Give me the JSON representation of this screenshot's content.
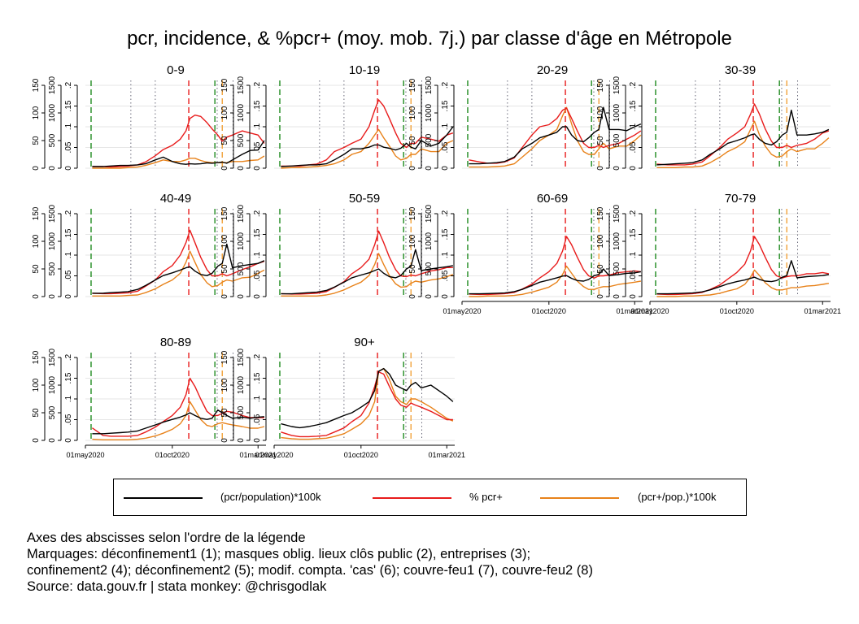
{
  "title": "pcr, incidence, & %pcr+ (moy. mob. 7j.) par classe d'âge en Métropole",
  "colors": {
    "pcr": "#000000",
    "pos": "#e81b1b",
    "inc": "#e8821a",
    "green": "#1e8a1e",
    "red": "#e81b1b",
    "orange": "#f2a23a",
    "dotted": "#6a6a7a",
    "grid": "#e6e6e6"
  },
  "legend": [
    {
      "label": "(pcr/population)*100k",
      "color": "#000000"
    },
    {
      "label": "% pcr+",
      "color": "#e81b1b"
    },
    {
      "label": "(pcr+/pop.)*100k",
      "color": "#e8821a"
    }
  ],
  "notes": [
    "Axes des abscisses selon l'ordre de la légende",
    "Marquages: déconfinement1 (1); masques oblig. lieux clôs public (2), entreprises (3);",
    "confinement2 (4); déconfinement2 (5); modif. compta. 'cas' (6); couvre-feu1 (7), couvre-feu2 (8)",
    "Source: data.gouv.fr | stata monkey: @chrisgodlak"
  ],
  "chart_data": {
    "type": "line",
    "x_tick_labels": [
      "01may2020",
      "01oct2020",
      "01mar2021"
    ],
    "xlim": [
      "2020-05-01",
      "2021-03-15"
    ],
    "axes": [
      {
        "name": "% pcr+",
        "ticks": [
          "0",
          ".05",
          ".1",
          ".15",
          ".2"
        ],
        "ylim": [
          0,
          0.2
        ]
      },
      {
        "name": "(pcr/population)*100k",
        "ticks": [
          "0",
          "500",
          "1000",
          "1500"
        ],
        "ylim": [
          0,
          1500
        ]
      },
      {
        "name": "(pcr+/pop.)*100k",
        "ticks": [
          "0",
          "50",
          "100",
          "150"
        ],
        "ylim": [
          0,
          150
        ]
      }
    ],
    "markers": [
      {
        "id": 1,
        "label": "déconfinement1",
        "date": "2020-05-11",
        "style": "green-dashed"
      },
      {
        "id": 2,
        "label": "masques oblig. lieux clôs public",
        "date": "2020-07-20",
        "style": "dotted"
      },
      {
        "id": 3,
        "label": "entreprises",
        "date": "2020-09-01",
        "style": "dotted"
      },
      {
        "id": 4,
        "label": "confinement2",
        "date": "2020-10-30",
        "style": "red-dashed"
      },
      {
        "id": 5,
        "label": "déconfinement2",
        "date": "2020-12-15",
        "style": "green-dashed"
      },
      {
        "id": 6,
        "label": "modif. compta. 'cas'",
        "date": "2020-12-19",
        "style": "dotted"
      },
      {
        "id": 7,
        "label": "couvre-feu1",
        "date": "2020-12-28",
        "style": "orange-dashed"
      },
      {
        "id": 8,
        "label": "couvre-feu2",
        "date": "2021-01-16",
        "style": "dotted"
      }
    ],
    "series_template_x": [
      "2020-05-13",
      "2020-06-01",
      "2020-06-15",
      "2020-07-01",
      "2020-07-15",
      "2020-08-01",
      "2020-08-15",
      "2020-09-01",
      "2020-09-15",
      "2020-10-01",
      "2020-10-15",
      "2020-10-25",
      "2020-11-01",
      "2020-11-10",
      "2020-11-20",
      "2020-12-01",
      "2020-12-10",
      "2020-12-20",
      "2020-12-28",
      "2021-01-05",
      "2021-01-15",
      "2021-02-01",
      "2021-02-15",
      "2021-03-01",
      "2021-03-12"
    ],
    "panels": [
      {
        "label": "0-9",
        "pcr": [
          30,
          30,
          40,
          50,
          50,
          60,
          80,
          150,
          200,
          120,
          80,
          70,
          80,
          75,
          80,
          95,
          90,
          100,
          110,
          90,
          150,
          250,
          320,
          330,
          500
        ],
        "pos": [
          0.004,
          0.004,
          0.003,
          0.004,
          0.005,
          0.008,
          0.015,
          0.03,
          0.045,
          0.055,
          0.07,
          0.09,
          0.12,
          0.128,
          0.125,
          0.11,
          0.095,
          0.08,
          0.065,
          0.075,
          0.08,
          0.09,
          0.085,
          0.08,
          0.06
        ],
        "inc": [
          0,
          0,
          0,
          0,
          1,
          2,
          5,
          10,
          15,
          12,
          12,
          15,
          18,
          18,
          14,
          11,
          10,
          10,
          10,
          10,
          12,
          12,
          14,
          15,
          22
        ]
      },
      {
        "label": "10-19",
        "pcr": [
          30,
          40,
          50,
          60,
          60,
          80,
          150,
          250,
          350,
          350,
          380,
          420,
          420,
          380,
          360,
          330,
          360,
          450,
          380,
          350,
          500,
          400,
          450,
          600,
          750
        ],
        "pos": [
          0.005,
          0.005,
          0.005,
          0.008,
          0.01,
          0.02,
          0.04,
          0.05,
          0.06,
          0.07,
          0.1,
          0.14,
          0.165,
          0.15,
          0.12,
          0.085,
          0.06,
          0.05,
          0.06,
          0.06,
          0.075,
          0.07,
          0.065,
          0.08,
          0.085
        ],
        "inc": [
          0,
          1,
          1,
          2,
          3,
          5,
          8,
          15,
          25,
          30,
          45,
          60,
          70,
          55,
          40,
          22,
          15,
          18,
          25,
          25,
          35,
          30,
          30,
          45,
          50
        ]
      },
      {
        "label": "20-29",
        "pcr": [
          80,
          80,
          90,
          100,
          120,
          200,
          350,
          450,
          550,
          600,
          650,
          750,
          750,
          600,
          500,
          480,
          550,
          650,
          700,
          1100,
          700,
          700,
          680,
          750,
          800
        ],
        "pos": [
          0.02,
          0.015,
          0.012,
          0.012,
          0.015,
          0.025,
          0.05,
          0.08,
          0.1,
          0.105,
          0.12,
          0.14,
          0.145,
          0.12,
          0.09,
          0.06,
          0.05,
          0.05,
          0.055,
          0.05,
          0.055,
          0.06,
          0.07,
          0.08,
          0.09
        ],
        "inc": [
          2,
          2,
          2,
          3,
          4,
          8,
          20,
          35,
          50,
          60,
          70,
          95,
          110,
          80,
          50,
          30,
          25,
          25,
          35,
          45,
          35,
          40,
          40,
          50,
          60
        ]
      },
      {
        "label": "30-39",
        "pcr": [
          60,
          70,
          80,
          90,
          100,
          150,
          250,
          350,
          450,
          500,
          550,
          600,
          620,
          520,
          450,
          420,
          480,
          600,
          650,
          1050,
          600,
          600,
          620,
          650,
          700
        ],
        "pos": [
          0.01,
          0.008,
          0.008,
          0.008,
          0.01,
          0.015,
          0.03,
          0.05,
          0.07,
          0.085,
          0.1,
          0.13,
          0.155,
          0.13,
          0.095,
          0.065,
          0.05,
          0.05,
          0.055,
          0.05,
          0.055,
          0.06,
          0.07,
          0.085,
          0.09
        ],
        "inc": [
          1,
          1,
          1,
          2,
          2,
          4,
          10,
          20,
          30,
          38,
          48,
          70,
          85,
          60,
          40,
          25,
          20,
          22,
          30,
          35,
          30,
          35,
          35,
          45,
          55
        ]
      },
      {
        "label": "40-49",
        "pcr": [
          60,
          60,
          70,
          80,
          90,
          130,
          200,
          300,
          380,
          430,
          480,
          520,
          540,
          460,
          400,
          380,
          420,
          550,
          600,
          950,
          520,
          560,
          580,
          600,
          650
        ],
        "pos": [
          0.008,
          0.007,
          0.007,
          0.008,
          0.009,
          0.013,
          0.025,
          0.04,
          0.06,
          0.075,
          0.1,
          0.13,
          0.16,
          0.13,
          0.095,
          0.065,
          0.05,
          0.05,
          0.055,
          0.05,
          0.055,
          0.065,
          0.072,
          0.08,
          0.085
        ],
        "inc": [
          1,
          1,
          1,
          1,
          2,
          3,
          7,
          14,
          22,
          30,
          42,
          62,
          82,
          62,
          40,
          25,
          18,
          20,
          26,
          30,
          28,
          34,
          35,
          42,
          48
        ]
      },
      {
        "label": "50-59",
        "pcr": [
          50,
          50,
          60,
          70,
          80,
          110,
          170,
          260,
          340,
          390,
          430,
          470,
          500,
          420,
          360,
          340,
          380,
          500,
          550,
          850,
          470,
          500,
          520,
          540,
          560
        ],
        "pos": [
          0.007,
          0.006,
          0.006,
          0.007,
          0.008,
          0.012,
          0.022,
          0.036,
          0.055,
          0.07,
          0.09,
          0.125,
          0.158,
          0.13,
          0.095,
          0.065,
          0.05,
          0.048,
          0.052,
          0.05,
          0.055,
          0.062,
          0.065,
          0.07,
          0.07
        ],
        "inc": [
          1,
          1,
          1,
          1,
          1,
          3,
          6,
          12,
          19,
          26,
          38,
          58,
          78,
          58,
          38,
          23,
          17,
          18,
          24,
          28,
          26,
          30,
          32,
          36,
          40
        ]
      },
      {
        "label": "60-69",
        "pcr": [
          50,
          50,
          55,
          60,
          65,
          90,
          130,
          200,
          260,
          300,
          340,
          370,
          380,
          330,
          290,
          280,
          310,
          380,
          400,
          500,
          380,
          400,
          420,
          430,
          450
        ],
        "pos": [
          0.006,
          0.005,
          0.005,
          0.006,
          0.007,
          0.01,
          0.018,
          0.03,
          0.045,
          0.06,
          0.08,
          0.11,
          0.145,
          0.125,
          0.095,
          0.065,
          0.05,
          0.045,
          0.05,
          0.05,
          0.052,
          0.058,
          0.06,
          0.062,
          0.06
        ],
        "inc": [
          0,
          0,
          1,
          1,
          1,
          2,
          4,
          8,
          12,
          17,
          26,
          40,
          55,
          42,
          28,
          18,
          13,
          13,
          16,
          18,
          18,
          22,
          24,
          26,
          28
        ]
      },
      {
        "label": "70-79",
        "pcr": [
          50,
          50,
          55,
          60,
          65,
          85,
          120,
          180,
          230,
          270,
          300,
          330,
          350,
          310,
          280,
          270,
          290,
          350,
          380,
          650,
          340,
          360,
          370,
          380,
          400
        ],
        "pos": [
          0.006,
          0.005,
          0.005,
          0.006,
          0.007,
          0.01,
          0.017,
          0.028,
          0.042,
          0.058,
          0.078,
          0.11,
          0.145,
          0.125,
          0.095,
          0.065,
          0.05,
          0.045,
          0.048,
          0.05,
          0.05,
          0.055,
          0.055,
          0.058,
          0.055
        ],
        "inc": [
          0,
          0,
          0,
          1,
          1,
          2,
          3,
          6,
          10,
          14,
          22,
          35,
          48,
          38,
          25,
          16,
          12,
          12,
          14,
          16,
          16,
          19,
          20,
          22,
          24
        ]
      },
      {
        "label": "80-89",
        "pcr": [
          120,
          120,
          130,
          140,
          150,
          170,
          220,
          280,
          330,
          380,
          420,
          460,
          500,
          450,
          400,
          380,
          400,
          550,
          500,
          450,
          400,
          420,
          400,
          420,
          430
        ],
        "pos": [
          0.03,
          0.012,
          0.01,
          0.01,
          0.01,
          0.012,
          0.02,
          0.032,
          0.045,
          0.06,
          0.08,
          0.11,
          0.15,
          0.13,
          0.1,
          0.07,
          0.06,
          0.06,
          0.065,
          0.07,
          0.068,
          0.06,
          0.055,
          0.055,
          0.055
        ],
        "inc": [
          2,
          1,
          1,
          1,
          1,
          2,
          4,
          8,
          13,
          20,
          30,
          45,
          70,
          55,
          38,
          27,
          25,
          30,
          32,
          30,
          28,
          25,
          22,
          22,
          25
        ]
      },
      {
        "label": "90+",
        "pcr": [
          300,
          250,
          230,
          250,
          280,
          320,
          380,
          450,
          500,
          600,
          700,
          900,
          1250,
          1300,
          1200,
          1000,
          950,
          900,
          1000,
          1050,
          950,
          1000,
          900,
          800,
          700
        ],
        "pos": [
          0.02,
          0.012,
          0.009,
          0.009,
          0.01,
          0.012,
          0.02,
          0.03,
          0.045,
          0.06,
          0.09,
          0.13,
          0.165,
          0.16,
          0.13,
          0.1,
          0.085,
          0.08,
          0.09,
          0.085,
          0.08,
          0.07,
          0.06,
          0.05,
          0.05
        ],
        "inc": [
          5,
          3,
          2,
          2,
          3,
          4,
          7,
          12,
          20,
          30,
          45,
          70,
          125,
          130,
          110,
          80,
          70,
          65,
          75,
          75,
          70,
          60,
          50,
          40,
          35
        ]
      }
    ]
  }
}
